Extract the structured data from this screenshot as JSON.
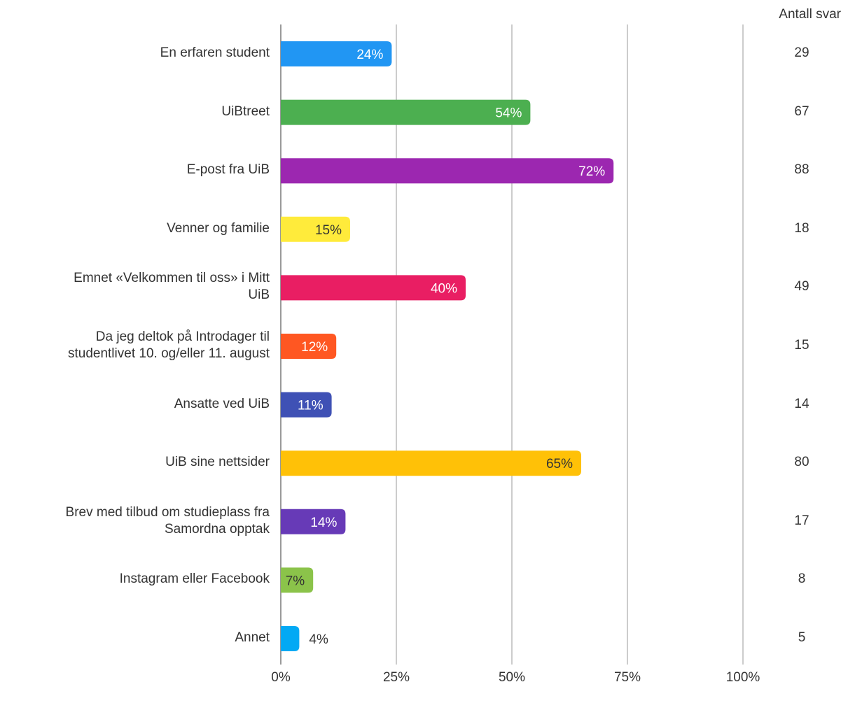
{
  "chart_data": {
    "type": "bar",
    "orientation": "horizontal",
    "categories": [
      "En erfaren student",
      "UiBtreet",
      "E-post fra UiB",
      "Venner og familie",
      "Emnet «Velkommen til oss» i Mitt\nUiB",
      "Da jeg deltok på Introdager til\nstudentlivet 10. og/eller 11. august",
      "Ansatte ved UiB",
      "UiB sine nettsider",
      "Brev med tilbud om studieplass fra\nSamordna opptak",
      "Instagram eller Facebook",
      "Annet"
    ],
    "values": [
      24,
      54,
      72,
      15,
      40,
      12,
      11,
      65,
      14,
      7,
      4
    ],
    "value_labels": [
      "24%",
      "54%",
      "72%",
      "15%",
      "40%",
      "12%",
      "11%",
      "65%",
      "14%",
      "7%",
      "4%"
    ],
    "counts": [
      "29",
      "67",
      "88",
      "18",
      "49",
      "15",
      "14",
      "80",
      "17",
      "8",
      "5"
    ],
    "counts_header": "Antall svar",
    "bar_colors": [
      "#2196F3",
      "#4CAF50",
      "#9C27B0",
      "#FFEB3B",
      "#E91E63",
      "#FF5722",
      "#3F51B5",
      "#FFC107",
      "#673AB7",
      "#8BC34A",
      "#03A9F4"
    ],
    "label_colors": [
      "#ffffff",
      "#ffffff",
      "#ffffff",
      "#333333",
      "#ffffff",
      "#ffffff",
      "#ffffff",
      "#333333",
      "#ffffff",
      "#333333",
      "#333333"
    ],
    "xlim": [
      0,
      100
    ],
    "x_ticks": [
      0,
      25,
      50,
      75,
      100
    ],
    "x_tick_labels": [
      "0%",
      "25%",
      "50%",
      "75%",
      "100%"
    ],
    "grid": true
  }
}
